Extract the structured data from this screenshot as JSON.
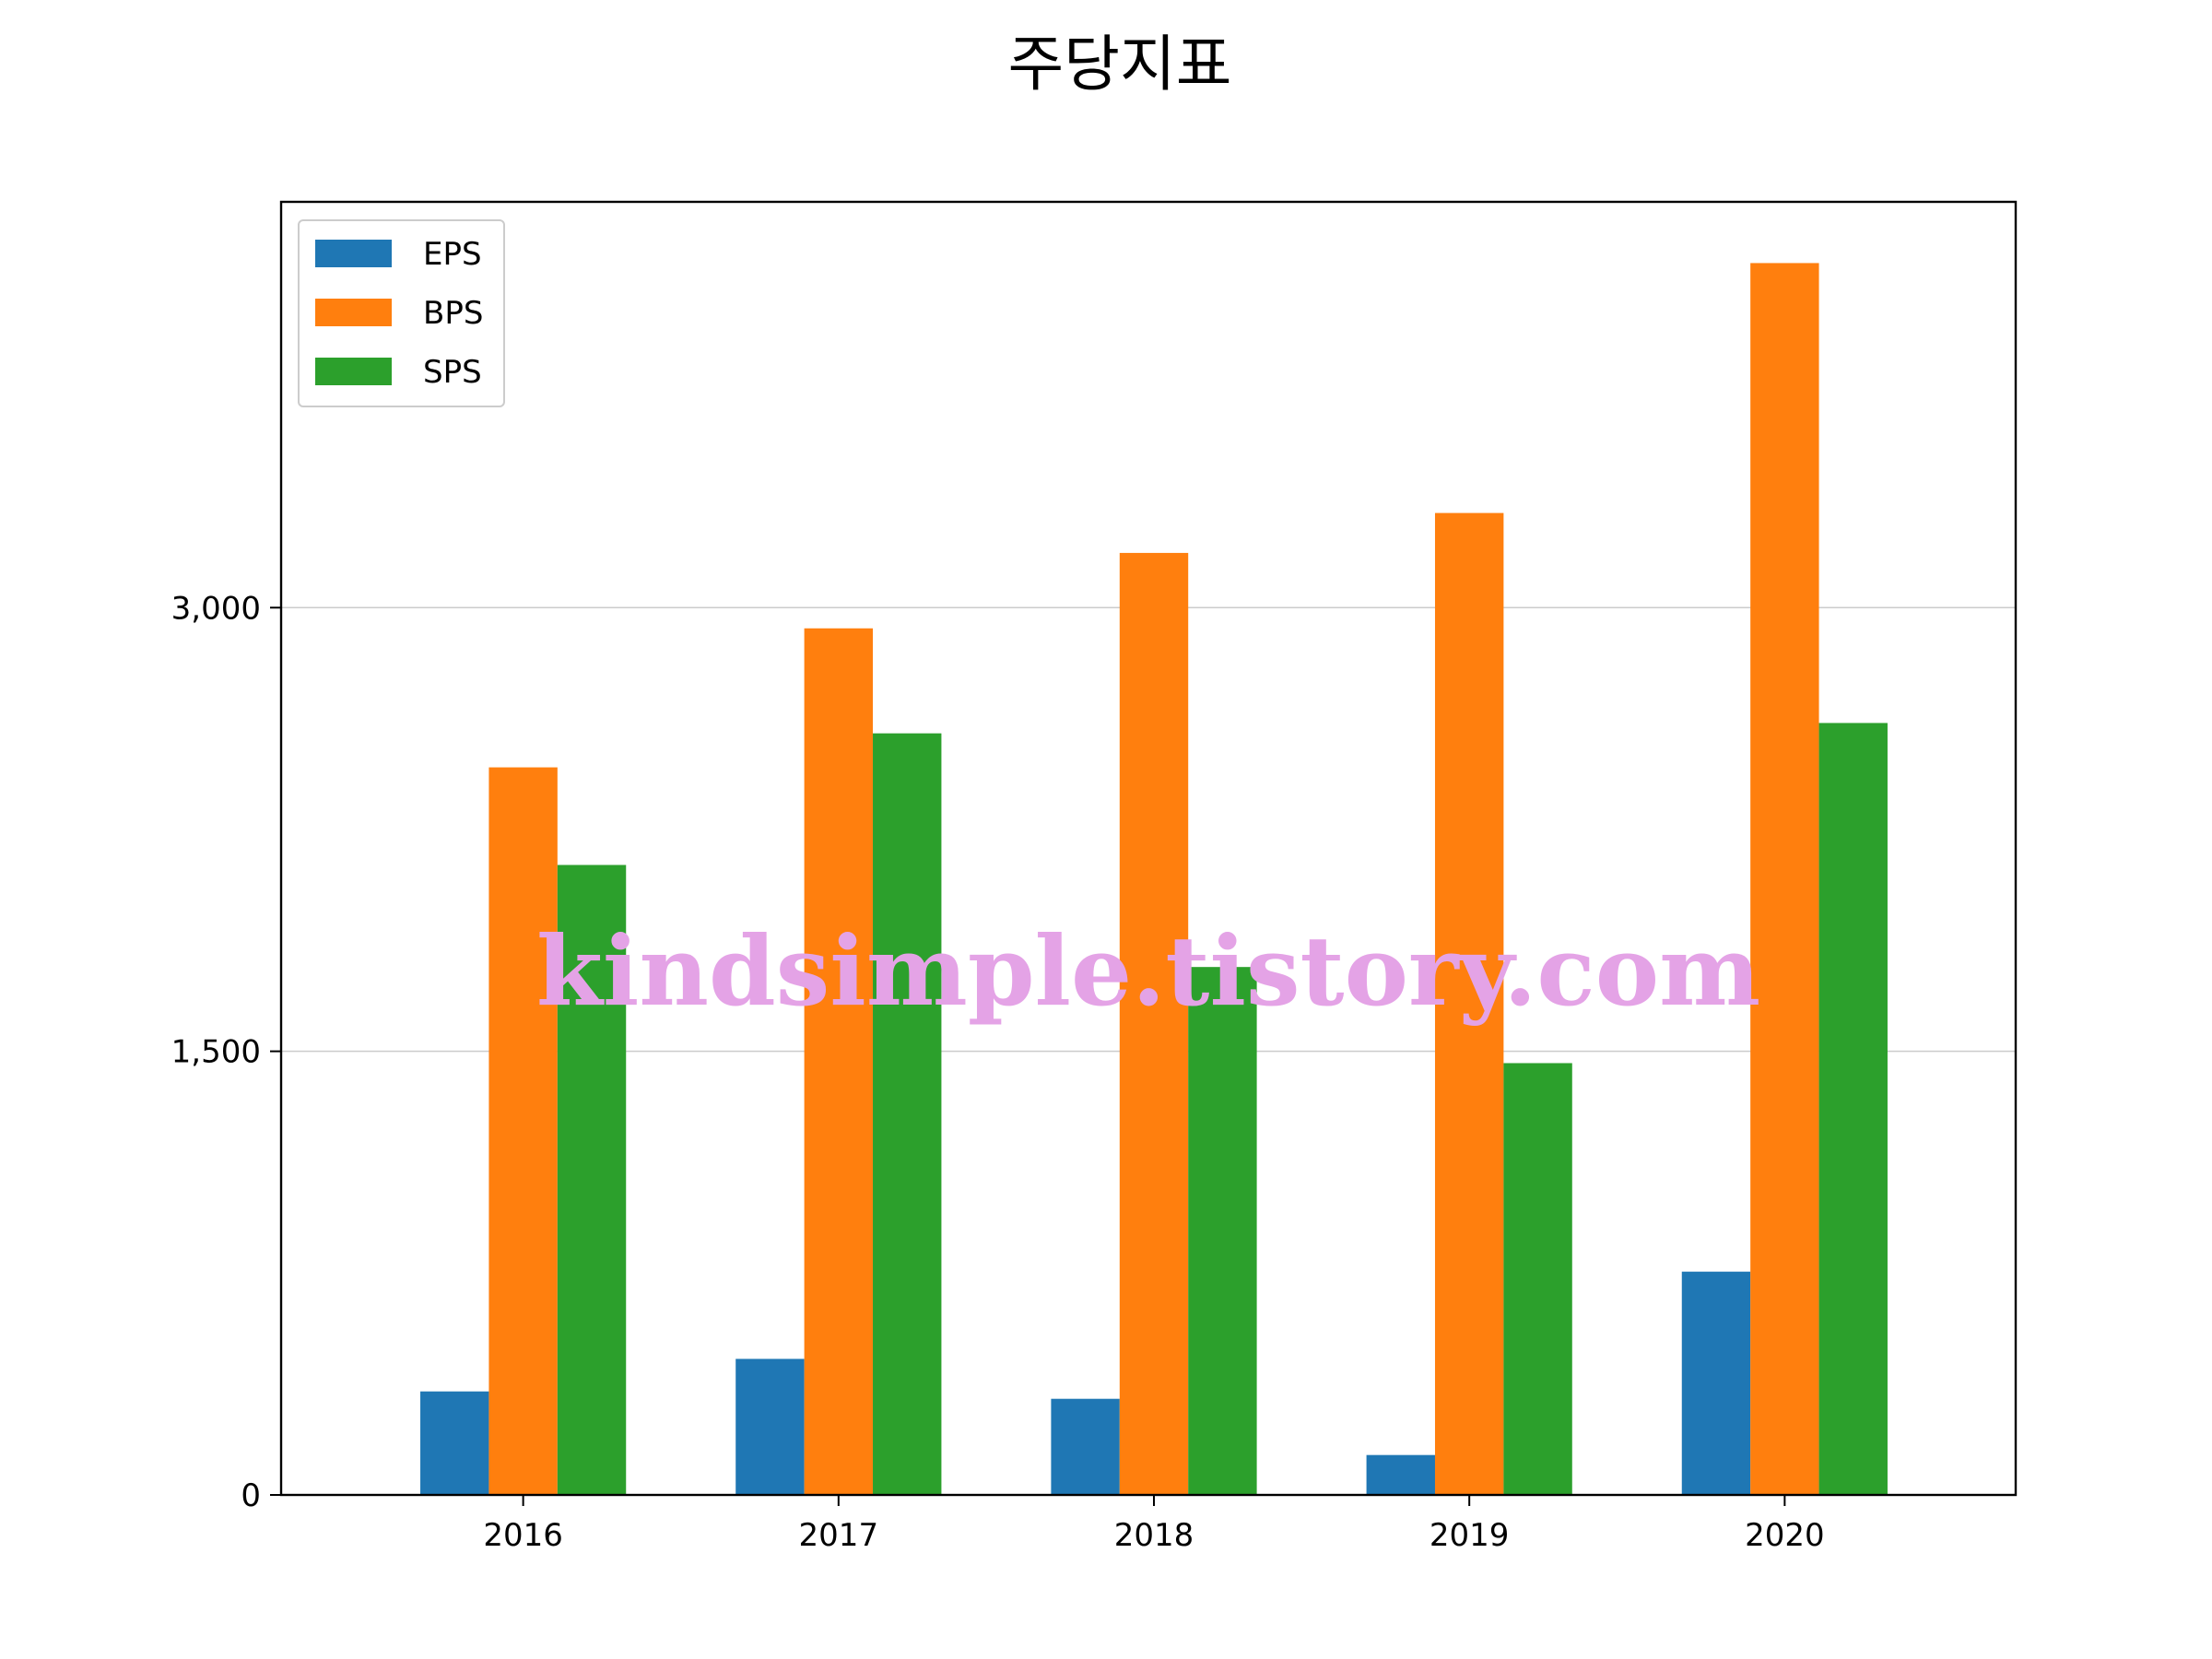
{
  "chart_data": {
    "type": "bar",
    "title": "주당지표",
    "xlabel": "",
    "ylabel": "",
    "categories": [
      "2016",
      "2017",
      "2018",
      "2019",
      "2020"
    ],
    "series": [
      {
        "name": "EPS",
        "color": "#1f77b4",
        "values": [
          350,
          460,
          325,
          135,
          755
        ]
      },
      {
        "name": "BPS",
        "color": "#ff7f0e",
        "values": [
          2460,
          2930,
          3185,
          3320,
          4165
        ]
      },
      {
        "name": "SPS",
        "color": "#2ca02c",
        "values": [
          2130,
          2575,
          1785,
          1460,
          2610
        ]
      }
    ],
    "ylim": [
      0,
      4372
    ],
    "yticks": [
      0,
      1500,
      3000
    ],
    "ytick_labels": [
      "0",
      "1,500",
      "3,000"
    ],
    "grid": "y",
    "legend_position": "top-left",
    "watermark": "kindsimple.tistory.com"
  }
}
